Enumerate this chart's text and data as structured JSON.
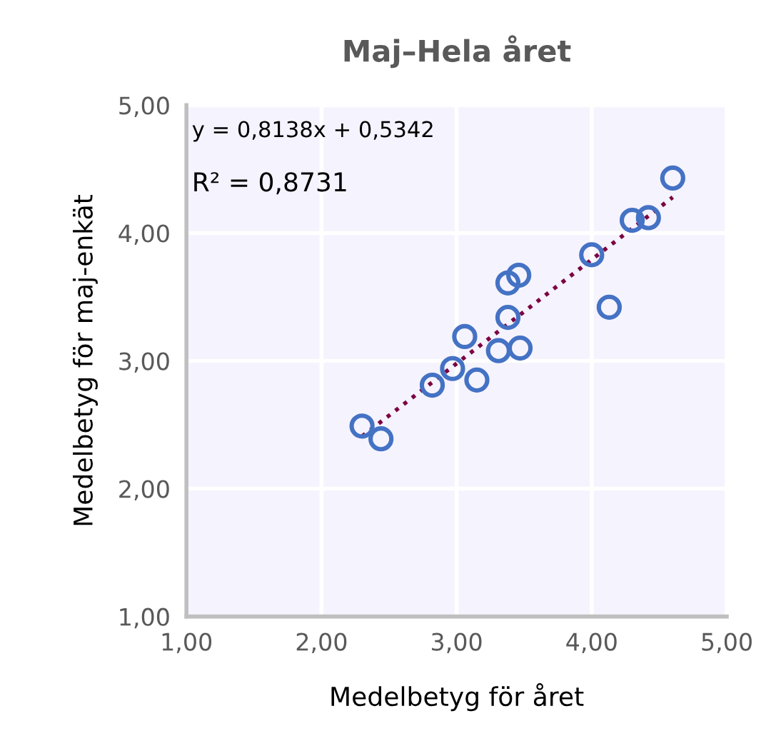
{
  "chart_data": {
    "type": "scatter",
    "title": "Maj–Hela året",
    "xlabel": "Medelbetyg för året",
    "ylabel": "Medelbetyg för maj-enkät",
    "annotations": [
      "y = 0,8138x + 0,5342",
      "R² = 0,8731"
    ],
    "series": [
      {
        "color": "#4472c4",
        "marker": "circle",
        "x": [
          2.3,
          2.44,
          2.82,
          2.97,
          3.06,
          3.15,
          3.31,
          3.38,
          3.47,
          3.38,
          3.46,
          4.0,
          4.13,
          4.3,
          4.42,
          4.6
        ],
        "values": [
          2.49,
          2.39,
          2.81,
          2.94,
          3.19,
          2.85,
          3.08,
          3.34,
          3.1,
          3.61,
          3.67,
          3.83,
          3.42,
          4.1,
          4.12,
          4.43
        ]
      },
      {
        "type": "line",
        "color": "#7b0041",
        "line_style": "dotted",
        "marker": "none",
        "x": [
          2.3,
          4.6
        ],
        "values": [
          2.41,
          4.28
        ]
      }
    ],
    "xlim": [
      1,
      5
    ],
    "ylim": [
      1,
      5
    ],
    "xticks": [
      {
        "value": 1,
        "label": "1,00"
      },
      {
        "value": 2,
        "label": "2,00"
      },
      {
        "value": 3,
        "label": "3,00"
      },
      {
        "value": 4,
        "label": "4,00"
      },
      {
        "value": 5,
        "label": "5,00"
      }
    ],
    "yticks": [
      {
        "value": 1,
        "label": "1,00"
      },
      {
        "value": 2,
        "label": "2,00"
      },
      {
        "value": 3,
        "label": "3,00"
      },
      {
        "value": 4,
        "label": "4,00"
      },
      {
        "value": 5,
        "label": "5,00"
      }
    ],
    "grid": true,
    "legend": false
  }
}
